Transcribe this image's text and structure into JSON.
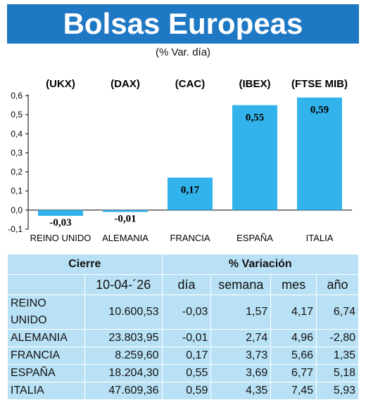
{
  "header": {
    "title": "Bolsas Europeas",
    "subtitle": "(% Var. día)"
  },
  "chart_data": {
    "type": "bar",
    "title": "Bolsas Europeas",
    "subtitle": "(% Var. día)",
    "codes": [
      "(UKX)",
      "(DAX)",
      "(CAC)",
      "(IBEX)",
      "(FTSE MIB)"
    ],
    "categories": [
      "REINO UNIDO",
      "ALEMANIA",
      "FRANCIA",
      "ESPAÑA",
      "ITALIA"
    ],
    "values": [
      -0.03,
      -0.01,
      0.17,
      0.55,
      0.59
    ],
    "value_labels": [
      "-0,03",
      "-0,01",
      "0,17",
      "0,55",
      "0,59"
    ],
    "ylim": [
      -0.1,
      0.6
    ],
    "yticks": [
      -0.1,
      0.0,
      0.1,
      0.2,
      0.3,
      0.4,
      0.5,
      0.6
    ],
    "ytick_labels": [
      "-0,1",
      "0,0",
      "0,1",
      "0,2",
      "0,3",
      "0,4",
      "0,5",
      "0,6"
    ],
    "grid": false,
    "bar_color": "#33b3ec"
  },
  "table": {
    "header_cierre": "Cierre",
    "header_variacion": "% Variación",
    "date": "10-04-´26",
    "columns": [
      "día",
      "semana",
      "mes",
      "año"
    ],
    "rows": [
      {
        "name": "REINO UNIDO",
        "cierre": "10.600,53",
        "dia": "-0,03",
        "semana": "1,57",
        "mes": "4,17",
        "ano": "6,74"
      },
      {
        "name": "ALEMANIA",
        "cierre": "23.803,95",
        "dia": "-0,01",
        "semana": "2,74",
        "mes": "4,96",
        "ano": "-2,80"
      },
      {
        "name": "FRANCIA",
        "cierre": "8.259,60",
        "dia": "0,17",
        "semana": "3,73",
        "mes": "5,66",
        "ano": "1,35"
      },
      {
        "name": "ESPAÑA",
        "cierre": "18.204,30",
        "dia": "0,55",
        "semana": "3,69",
        "mes": "6,77",
        "ano": "5,18"
      },
      {
        "name": "ITALIA",
        "cierre": "47.609,36",
        "dia": "0,59",
        "semana": "4,35",
        "mes": "7,45",
        "ano": "5,93"
      }
    ]
  },
  "colors": {
    "banner": "#1f78c3",
    "bar": "#33b3ec",
    "table_bg": "#b9e1f5"
  }
}
